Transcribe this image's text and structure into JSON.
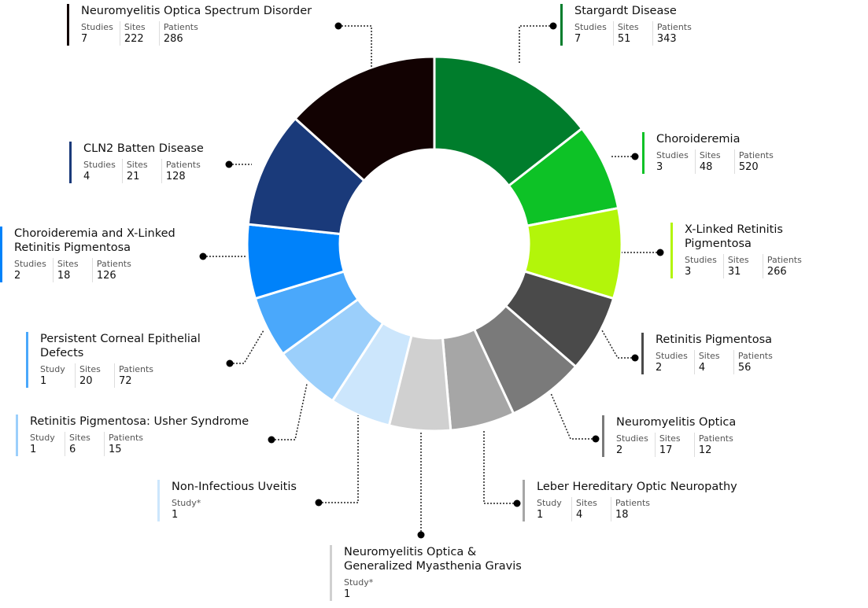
{
  "nodes": [
    {
      "label": "Stargardt Disease",
      "color": "#007d2c",
      "stats": [
        {
          "label": "Studies",
          "value": 7
        },
        {
          "label": "Sites",
          "value": 51
        },
        {
          "label": "Patients",
          "value": 343
        }
      ]
    },
    {
      "label": "Choroideremia",
      "color": "#0dc226",
      "stats": [
        {
          "label": "Studies",
          "value": 3
        },
        {
          "label": "Sites",
          "value": 48
        },
        {
          "label": "Patients",
          "value": 520
        }
      ]
    },
    {
      "label": "X-Linked Retinitis Pigmentosa",
      "color": "#b3f50a",
      "stats": [
        {
          "label": "Studies",
          "value": 3
        },
        {
          "label": "Sites",
          "value": 31
        },
        {
          "label": "Patients",
          "value": 266
        }
      ]
    },
    {
      "label": "Retinitis Pigmentosa",
      "color": "#4a4a4a",
      "stats": [
        {
          "label": "Studies",
          "value": 2
        },
        {
          "label": "Sites",
          "value": 4
        },
        {
          "label": "Patients",
          "value": 56
        }
      ]
    },
    {
      "label": "Neuromyelitis Optica",
      "color": "#7a7a7a",
      "stats": [
        {
          "label": "Studies",
          "value": 2
        },
        {
          "label": "Sites",
          "value": 17
        },
        {
          "label": "Patients",
          "value": 12
        }
      ]
    },
    {
      "label": "Leber Hereditary Optic Neuropathy",
      "color": "#a6a6a6",
      "stats": [
        {
          "label": "Study",
          "value": 1
        },
        {
          "label": "Sites",
          "value": 4
        },
        {
          "label": "Patients",
          "value": 18
        }
      ]
    },
    {
      "label": "Neuromyelitis Optica & Generalized Myasthenia Gravis",
      "color": "#d0d0d0",
      "stats": [
        {
          "label": "Study*",
          "value": 1
        }
      ]
    },
    {
      "label": "Non-Infectious Uveitis",
      "color": "#cce6fc",
      "stats": [
        {
          "label": "Study*",
          "value": 1
        }
      ]
    },
    {
      "label": "Retinitis Pigmentosa: Usher Syndrome",
      "color": "#9bcffb",
      "stats": [
        {
          "label": "Study",
          "value": 1
        },
        {
          "label": "Sites",
          "value": 6
        },
        {
          "label": "Patients",
          "value": 15
        }
      ]
    },
    {
      "label": "Persistent Corneal Epithelial Defects",
      "color": "#4aa8fb",
      "stats": [
        {
          "label": "Study",
          "value": 1
        },
        {
          "label": "Sites",
          "value": 20
        },
        {
          "label": "Patients",
          "value": 72
        }
      ]
    },
    {
      "label": "Choroideremia and X-Linked Retinitis Pigmentosa",
      "color": "#0082fa",
      "stats": [
        {
          "label": "Studies",
          "value": 2
        },
        {
          "label": "Sites",
          "value": 18
        },
        {
          "label": "Patients",
          "value": 126
        }
      ]
    },
    {
      "label": "CLN2 Batten Disease",
      "color": "#1a3a7a",
      "stats": [
        {
          "label": "Studies",
          "value": 4
        },
        {
          "label": "Sites",
          "value": 21
        },
        {
          "label": "Patients",
          "value": 128
        }
      ]
    },
    {
      "label": "Neuromyelitis Optica Spectrum Disorder",
      "color": "#120202",
      "stats": [
        {
          "label": "Studies",
          "value": 7
        },
        {
          "label": "Sites",
          "value": 222
        },
        {
          "label": "Patients",
          "value": 286
        }
      ]
    }
  ]
}
